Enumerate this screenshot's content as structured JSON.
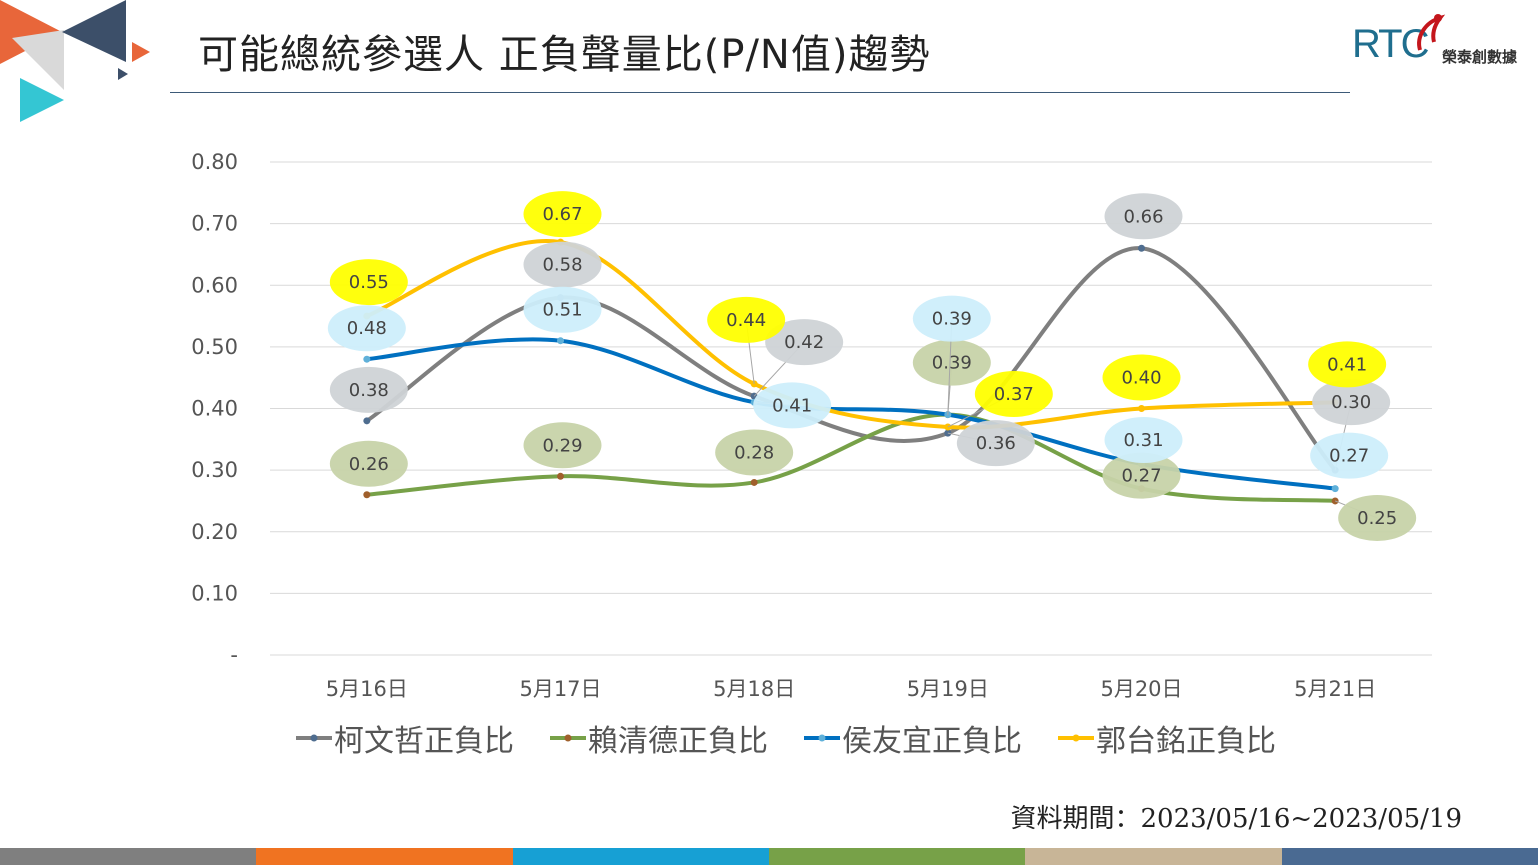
{
  "header": {
    "title": "可能總統參選人 正負聲量比(P/N值)趨勢",
    "logo_text": "RTC",
    "logo_subtext": "榮泰創數據"
  },
  "footer": {
    "note": "資料期間：2023/05/16~2023/05/19"
  },
  "colors": {
    "bottom_bar": [
      "#7f7f7f",
      "#f07321",
      "#17a0d4",
      "#77a148",
      "#c8b597",
      "#4a6a92"
    ],
    "deco_orange": "#e8663a",
    "deco_navy": "#3c4f69",
    "deco_cyan": "#34c6d3",
    "deco_gray": "#d9d9d9"
  },
  "chart_data": {
    "type": "line",
    "title": "可能總統參選人 正負聲量比(P/N值)趨勢",
    "xlabel": "",
    "ylabel": "",
    "ylim": [
      0,
      0.8
    ],
    "yticks": [
      {
        "value": 0.8,
        "label": "0.80"
      },
      {
        "value": 0.7,
        "label": "0.70"
      },
      {
        "value": 0.6,
        "label": "0.60"
      },
      {
        "value": 0.5,
        "label": "0.50"
      },
      {
        "value": 0.4,
        "label": "0.40"
      },
      {
        "value": 0.3,
        "label": "0.30"
      },
      {
        "value": 0.2,
        "label": "0.20"
      },
      {
        "value": 0.1,
        "label": "0.10"
      },
      {
        "value": 0,
        "label": "-"
      }
    ],
    "grid": true,
    "legend_position": "bottom",
    "categories": [
      "5月16日",
      "5月17日",
      "5月18日",
      "5月19日",
      "5月20日",
      "5月21日"
    ],
    "series": [
      {
        "name": "柯文哲正負比",
        "color": "#7f7f7f",
        "label_fill": "#cfd3d6",
        "marker": "#4f6d8f",
        "values": [
          0.38,
          0.58,
          0.42,
          0.36,
          0.66,
          0.3
        ],
        "labels": [
          "0.38",
          "0.58",
          "0.42",
          "0.36",
          "0.66",
          "0.30"
        ]
      },
      {
        "name": "賴清德正負比",
        "color": "#77a148",
        "label_fill": "#c7d3a9",
        "marker": "#a0602c",
        "values": [
          0.26,
          0.29,
          0.28,
          0.39,
          0.27,
          0.25
        ],
        "labels": [
          "0.26",
          "0.29",
          "0.28",
          "0.39",
          "0.27",
          "0.25"
        ]
      },
      {
        "name": "侯友宜正負比",
        "color": "#0070c0",
        "label_fill": "#cdeefb",
        "marker": "#5fb0d9",
        "values": [
          0.48,
          0.51,
          0.41,
          0.39,
          0.31,
          0.27
        ],
        "labels": [
          "0.48",
          "0.51",
          "0.41",
          "0.39",
          "0.31",
          "0.27"
        ]
      },
      {
        "name": "郭台銘正負比",
        "color": "#ffc000",
        "label_fill": "#ffff00",
        "marker": "#ffc000",
        "values": [
          0.55,
          0.67,
          0.44,
          0.37,
          0.4,
          0.41
        ],
        "labels": [
          "0.55",
          "0.67",
          "0.44",
          "0.37",
          "0.40",
          "0.41"
        ]
      }
    ]
  }
}
